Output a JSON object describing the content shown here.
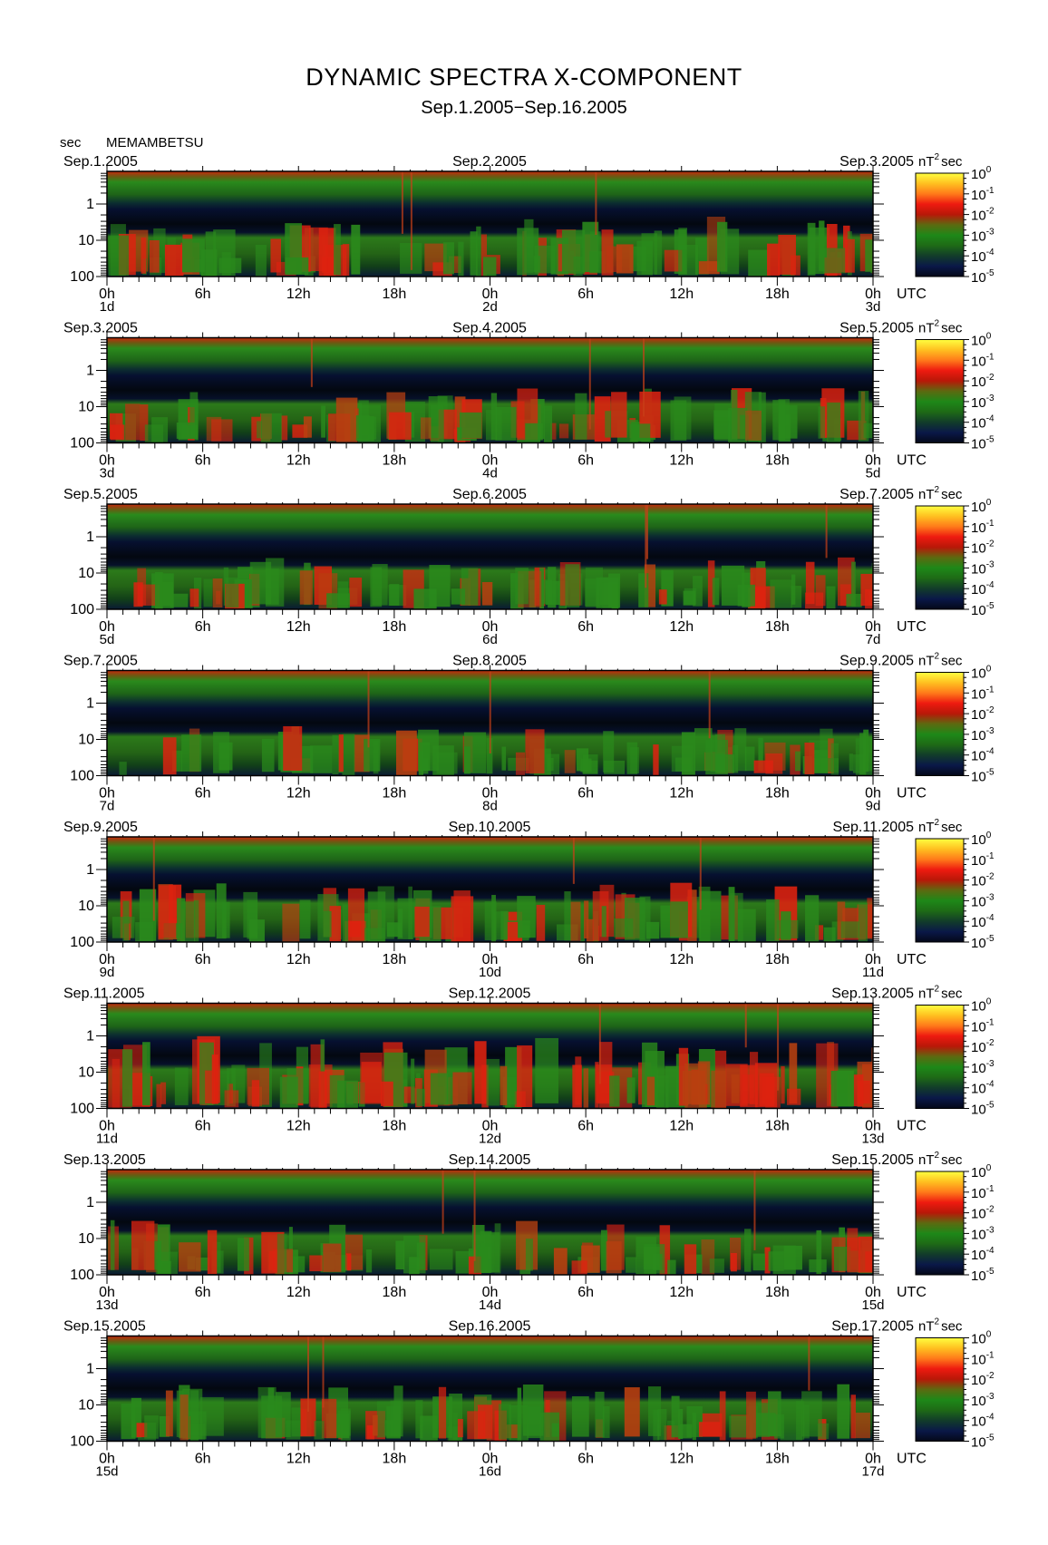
{
  "header": {
    "title": "DYNAMIC SPECTRA X-COMPONENT",
    "subtitle": "Sep.1.2005−Sep.16.2005",
    "y_unit": "sec",
    "station": "MEMAMBETSU"
  },
  "chart_data": {
    "type": "heatmap",
    "title": "DYNAMIC SPECTRA X-COMPONENT",
    "subtitle": "Sep.1.2005−Sep.16.2005",
    "station": "MEMAMBETSU",
    "ylabel": "sec",
    "y_scale": "log",
    "y_ticks": [
      "1",
      "10",
      "100"
    ],
    "x_ticks": [
      "0h",
      "6h",
      "12h",
      "18h",
      "0h",
      "6h",
      "12h",
      "18h",
      "0h"
    ],
    "x_unit": "UTC",
    "colorbar": {
      "unit_prefix": "nT",
      "unit_exp": "2",
      "unit_suffix": "sec",
      "base": "10",
      "exponents": [
        "0",
        "-1",
        "-2",
        "-3",
        "-4",
        "-5"
      ],
      "colors": [
        "#ffff40",
        "#ffc020",
        "#ff7a1a",
        "#ee1a10",
        "#b81808",
        "#5c6a10",
        "#1e8818",
        "#1e6a16",
        "#123c2a",
        "#0a1848",
        "#040818"
      ]
    },
    "panels": [
      {
        "date_left": "Sep.1.2005",
        "date_mid": "Sep.2.2005",
        "date_right": "Sep.3.2005",
        "days": [
          "1d",
          "2d",
          "3d"
        ],
        "activity": 0.55
      },
      {
        "date_left": "Sep.3.2005",
        "date_mid": "Sep.4.2005",
        "date_right": "Sep.5.2005",
        "days": [
          "3d",
          "4d",
          "5d"
        ],
        "activity": 0.5
      },
      {
        "date_left": "Sep.5.2005",
        "date_mid": "Sep.6.2005",
        "date_right": "Sep.7.2005",
        "days": [
          "5d",
          "6d",
          "7d"
        ],
        "activity": 0.4
      },
      {
        "date_left": "Sep.7.2005",
        "date_mid": "Sep.8.2005",
        "date_right": "Sep.9.2005",
        "days": [
          "7d",
          "8d",
          "9d"
        ],
        "activity": 0.3
      },
      {
        "date_left": "Sep.9.2005",
        "date_mid": "Sep.10.2005",
        "date_right": "Sep.11.2005",
        "days": [
          "9d",
          "10d",
          "11d"
        ],
        "activity": 0.6
      },
      {
        "date_left": "Sep.11.2005",
        "date_mid": "Sep.12.2005",
        "date_right": "Sep.13.2005",
        "days": [
          "11d",
          "12d",
          "13d"
        ],
        "activity": 0.9
      },
      {
        "date_left": "Sep.13.2005",
        "date_mid": "Sep.14.2005",
        "date_right": "Sep.15.2005",
        "days": [
          "13d",
          "14d",
          "15d"
        ],
        "activity": 0.45
      },
      {
        "date_left": "Sep.15.2005",
        "date_mid": "Sep.16.2005",
        "date_right": "Sep.17.2005",
        "days": [
          "15d",
          "16d",
          "17d"
        ],
        "activity": 0.55
      }
    ]
  }
}
